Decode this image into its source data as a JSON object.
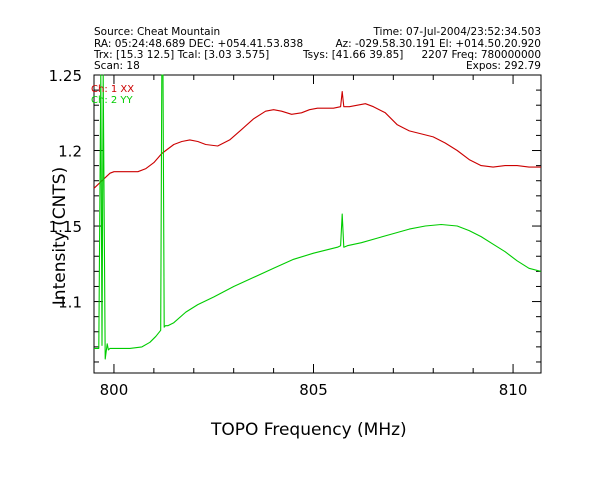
{
  "header": {
    "source": "Source: Cheat Mountain",
    "ra_dec": "RA: 05:24:48.689 DEC: +054.41.53.838",
    "trx_tcal": "Trx: [15.3 12.5]  Tcal: [3.03 3.575]",
    "tsys": "Tsys: [41.66 39.85]",
    "scan": "Scan: 18",
    "time": "Time: 07-Jul-2004/23:52:34.503",
    "az_el": "Az: -029.58.30.191 El: +014.50.20.920",
    "freq": "2207 Freq: 780000000",
    "expos": "Expos: 292.79"
  },
  "colors": {
    "series1": "#cc0000",
    "series2": "#00cc00",
    "axis": "#000000"
  },
  "chart_data": {
    "type": "line",
    "xlabel": "TOPO Frequency (MHz)",
    "ylabel": "Intensity (CNTS)",
    "xlim": [
      799.5,
      810.7
    ],
    "ylim": [
      1.0527,
      1.25
    ],
    "xticks": [
      "800",
      "805",
      "810"
    ],
    "yticks": [
      "1.1",
      "1.15",
      "1.2",
      "1.25"
    ],
    "legend": [
      "Ch: 1 XX",
      "Ch: 2 YY"
    ],
    "series": [
      {
        "name": "Ch: 1 XX",
        "x": [
          799.5,
          799.7,
          799.9,
          800.0,
          800.3,
          800.6,
          800.8,
          801.0,
          801.2,
          801.35,
          801.5,
          801.7,
          801.9,
          802.1,
          802.3,
          802.6,
          802.9,
          803.2,
          803.5,
          803.8,
          804.0,
          804.2,
          804.45,
          804.7,
          804.9,
          805.1,
          805.3,
          805.5,
          805.68,
          805.72,
          805.76,
          805.9,
          806.1,
          806.3,
          806.5,
          806.8,
          807.1,
          807.4,
          807.7,
          808.0,
          808.3,
          808.6,
          808.9,
          809.2,
          809.5,
          809.8,
          810.1,
          810.4,
          810.7
        ],
        "y": [
          1.175,
          1.18,
          1.185,
          1.186,
          1.186,
          1.186,
          1.188,
          1.192,
          1.198,
          1.201,
          1.204,
          1.206,
          1.207,
          1.206,
          1.204,
          1.203,
          1.207,
          1.214,
          1.221,
          1.226,
          1.227,
          1.226,
          1.224,
          1.225,
          1.227,
          1.228,
          1.228,
          1.228,
          1.229,
          1.239,
          1.229,
          1.229,
          1.23,
          1.231,
          1.229,
          1.225,
          1.217,
          1.213,
          1.211,
          1.209,
          1.205,
          1.2,
          1.194,
          1.19,
          1.189,
          1.19,
          1.19,
          1.189,
          1.189
        ]
      },
      {
        "name": "Ch: 2 YY",
        "x": [
          799.5,
          799.62,
          799.67,
          799.7,
          799.73,
          799.78,
          799.83,
          799.86,
          799.9,
          800.1,
          800.4,
          800.7,
          800.9,
          801.05,
          801.17,
          801.2,
          801.23,
          801.26,
          801.29,
          801.35,
          801.5,
          801.8,
          802.1,
          802.5,
          803.0,
          803.5,
          804.0,
          804.5,
          805.0,
          805.3,
          805.6,
          805.68,
          805.72,
          805.76,
          805.85,
          806.2,
          806.6,
          807.0,
          807.4,
          807.8,
          808.2,
          808.6,
          808.9,
          809.2,
          809.5,
          809.8,
          810.1,
          810.4,
          810.7
        ],
        "y": [
          1.069,
          1.069,
          1.25,
          1.071,
          1.25,
          1.062,
          1.072,
          1.068,
          1.069,
          1.069,
          1.069,
          1.07,
          1.073,
          1.077,
          1.081,
          1.25,
          1.25,
          1.083,
          1.084,
          1.084,
          1.086,
          1.093,
          1.098,
          1.103,
          1.11,
          1.116,
          1.122,
          1.128,
          1.132,
          1.134,
          1.136,
          1.137,
          1.158,
          1.136,
          1.137,
          1.139,
          1.142,
          1.145,
          1.148,
          1.15,
          1.151,
          1.15,
          1.147,
          1.143,
          1.138,
          1.133,
          1.127,
          1.122,
          1.12
        ]
      }
    ]
  }
}
